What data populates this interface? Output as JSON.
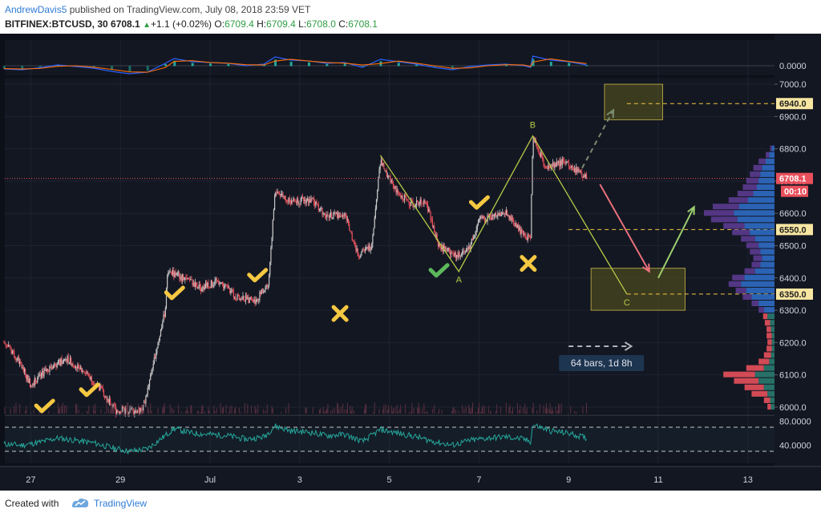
{
  "header": {
    "author": "AndrewDavis5",
    "published": "published on TradingView.com, July 08, 2018 23:59 VET",
    "symbol": "BITFINEX:BTCUSD, 30",
    "last": "6708.1",
    "change": "+1.1 (+0.02%)",
    "o_label": "O:",
    "o": "6709.4",
    "h_label": "H:",
    "h": "6709.4",
    "l_label": "L:",
    "l": "6708.0",
    "c_label": "C:",
    "c": "6708.1"
  },
  "footer": {
    "created": "Created with",
    "brand": "TradingView"
  },
  "colors": {
    "background": "#131722",
    "grid": "#1e2330",
    "up": "#c8c8c8",
    "down": "#e8505b",
    "accent_yellow": "#f5c842",
    "wave": "#b7c947",
    "box_fill": "#5c5a1e",
    "rsi": "#26a69a",
    "price_line": "#e8505b",
    "volume_profile_up": "#2f6bc4",
    "volume_profile_down": "#e8505b",
    "volume_profile_violet": "#5b3a8f"
  },
  "chart_data": {
    "type": "candlestick",
    "symbol": "BITFINEX:BTCUSD",
    "timeframe": "30",
    "x_labels": [
      "27",
      "29",
      "Jul",
      "3",
      "5",
      "7",
      "9",
      "11",
      "13"
    ],
    "x_label_days": [
      -4,
      -2,
      0,
      2,
      4,
      6,
      8,
      10,
      12
    ],
    "y_ticks": [
      6000,
      6100,
      6200,
      6300,
      6400,
      6500,
      6600,
      6700,
      6800,
      6900,
      7000
    ],
    "y_tick_labels": [
      "6000.0",
      "6100.0",
      "6200.0",
      "6300.0",
      "6400.0",
      "6500.0",
      "6600.0",
      "6700.0",
      "6800.0",
      "6900.0",
      "7000.0"
    ],
    "ylim": [
      5980,
      7020
    ],
    "current_price": {
      "value": 6708.1,
      "label": "6708.1",
      "countdown": "00:10"
    },
    "levels": [
      {
        "value": 6940,
        "label": "6940.0"
      },
      {
        "value": 6550,
        "label": "6550.0"
      },
      {
        "value": 6350,
        "label": "6350.0"
      }
    ],
    "price_path": [
      [
        -4.6,
        6200
      ],
      [
        -4.3,
        6150
      ],
      [
        -4.0,
        6070
      ],
      [
        -3.6,
        6120
      ],
      [
        -3.2,
        6150
      ],
      [
        -2.8,
        6110
      ],
      [
        -2.4,
        6050
      ],
      [
        -2.1,
        5990
      ],
      [
        -1.5,
        5990
      ],
      [
        -1.0,
        6300
      ],
      [
        -0.95,
        6420
      ],
      [
        -0.6,
        6400
      ],
      [
        -0.2,
        6370
      ],
      [
        0.2,
        6390
      ],
      [
        0.6,
        6340
      ],
      [
        1.0,
        6330
      ],
      [
        1.3,
        6380
      ],
      [
        1.45,
        6670
      ],
      [
        1.8,
        6640
      ],
      [
        2.3,
        6640
      ],
      [
        2.6,
        6590
      ],
      [
        3.0,
        6600
      ],
      [
        3.3,
        6470
      ],
      [
        3.6,
        6500
      ],
      [
        3.8,
        6760
      ],
      [
        4.2,
        6660
      ],
      [
        4.5,
        6630
      ],
      [
        4.8,
        6640
      ],
      [
        5.1,
        6500
      ],
      [
        5.5,
        6470
      ],
      [
        5.8,
        6500
      ],
      [
        6.0,
        6580
      ],
      [
        6.3,
        6590
      ],
      [
        6.6,
        6600
      ],
      [
        6.8,
        6570
      ],
      [
        7.0,
        6530
      ],
      [
        7.15,
        6520
      ],
      [
        7.2,
        6840
      ],
      [
        7.5,
        6740
      ],
      [
        7.9,
        6760
      ],
      [
        8.2,
        6730
      ],
      [
        8.4,
        6708
      ]
    ],
    "wave": {
      "points": [
        {
          "label": "",
          "day": 3.8,
          "value": 6780
        },
        {
          "label": "A",
          "day": 5.55,
          "value": 6420
        },
        {
          "label": "B",
          "day": 7.2,
          "value": 6840
        },
        {
          "label": "C",
          "day": 9.3,
          "value": 6350
        }
      ]
    },
    "zones": [
      {
        "day_start": 8.8,
        "day_end": 10.1,
        "low": 6890,
        "high": 7000
      },
      {
        "day_start": 8.5,
        "day_end": 10.6,
        "low": 6300,
        "high": 6430
      }
    ],
    "arrows": [
      {
        "type": "dashed",
        "from": [
          8.3,
          6740
        ],
        "to": [
          9.0,
          6920
        ]
      },
      {
        "type": "solid-red",
        "from": [
          8.7,
          6690
        ],
        "to": [
          9.8,
          6420
        ]
      },
      {
        "type": "solid-green",
        "from": [
          10.0,
          6400
        ],
        "to": [
          10.8,
          6620
        ]
      }
    ],
    "markers": [
      {
        "kind": "check",
        "color": "yellow",
        "day": -3.7,
        "value": 6000
      },
      {
        "kind": "check",
        "color": "yellow",
        "day": -2.7,
        "value": 6050
      },
      {
        "kind": "check",
        "color": "yellow",
        "day": -0.8,
        "value": 6350
      },
      {
        "kind": "check",
        "color": "yellow",
        "day": 1.05,
        "value": 6405
      },
      {
        "kind": "cross",
        "color": "yellow",
        "day": 2.9,
        "value": 6290
      },
      {
        "kind": "check",
        "color": "green",
        "day": 5.1,
        "value": 6420
      },
      {
        "kind": "check",
        "color": "yellow",
        "day": 6.0,
        "value": 6630
      },
      {
        "kind": "cross",
        "color": "yellow",
        "day": 7.1,
        "value": 6445
      }
    ],
    "measure": {
      "label": "64 bars, 1d 8h",
      "from_day": 8.0,
      "to_day": 9.4
    },
    "volume_profile": [
      {
        "price": 6000,
        "buy": 0.04,
        "sell": 0.04
      },
      {
        "price": 6020,
        "buy": 0.05,
        "sell": 0.07
      },
      {
        "price": 6040,
        "buy": 0.08,
        "sell": 0.18
      },
      {
        "price": 6060,
        "buy": 0.12,
        "sell": 0.22
      },
      {
        "price": 6080,
        "buy": 0.18,
        "sell": 0.28
      },
      {
        "price": 6100,
        "buy": 0.22,
        "sell": 0.36
      },
      {
        "price": 6120,
        "buy": 0.12,
        "sell": 0.2
      },
      {
        "price": 6140,
        "buy": 0.06,
        "sell": 0.12
      },
      {
        "price": 6160,
        "buy": 0.04,
        "sell": 0.08
      },
      {
        "price": 6180,
        "buy": 0.03,
        "sell": 0.06
      },
      {
        "price": 6200,
        "buy": 0.03,
        "sell": 0.05
      },
      {
        "price": 6220,
        "buy": 0.03,
        "sell": 0.06
      },
      {
        "price": 6240,
        "buy": 0.04,
        "sell": 0.05
      },
      {
        "price": 6260,
        "buy": 0.05,
        "sell": 0.06
      },
      {
        "price": 6280,
        "buy": 0.08,
        "sell": 0.05
      },
      {
        "price": 6300,
        "buy": 0.12,
        "sell": 0.06
      },
      {
        "price": 6320,
        "buy": 0.18,
        "sell": 0.08
      },
      {
        "price": 6340,
        "buy": 0.26,
        "sell": 0.1
      },
      {
        "price": 6360,
        "buy": 0.32,
        "sell": 0.12
      },
      {
        "price": 6380,
        "buy": 0.38,
        "sell": 0.14
      },
      {
        "price": 6400,
        "buy": 0.34,
        "sell": 0.14
      },
      {
        "price": 6420,
        "buy": 0.22,
        "sell": 0.12
      },
      {
        "price": 6440,
        "buy": 0.16,
        "sell": 0.1
      },
      {
        "price": 6460,
        "buy": 0.14,
        "sell": 0.1
      },
      {
        "price": 6480,
        "buy": 0.16,
        "sell": 0.12
      },
      {
        "price": 6500,
        "buy": 0.18,
        "sell": 0.14
      },
      {
        "price": 6520,
        "buy": 0.22,
        "sell": 0.16
      },
      {
        "price": 6540,
        "buy": 0.28,
        "sell": 0.2
      },
      {
        "price": 6560,
        "buy": 0.34,
        "sell": 0.24
      },
      {
        "price": 6580,
        "buy": 0.42,
        "sell": 0.3
      },
      {
        "price": 6600,
        "buy": 0.46,
        "sell": 0.34
      },
      {
        "price": 6620,
        "buy": 0.4,
        "sell": 0.3
      },
      {
        "price": 6640,
        "buy": 0.3,
        "sell": 0.22
      },
      {
        "price": 6660,
        "buy": 0.24,
        "sell": 0.18
      },
      {
        "price": 6680,
        "buy": 0.2,
        "sell": 0.16
      },
      {
        "price": 6700,
        "buy": 0.18,
        "sell": 0.14
      },
      {
        "price": 6720,
        "buy": 0.16,
        "sell": 0.12
      },
      {
        "price": 6740,
        "buy": 0.14,
        "sell": 0.1
      },
      {
        "price": 6760,
        "buy": 0.1,
        "sell": 0.08
      },
      {
        "price": 6780,
        "buy": 0.06,
        "sell": 0.04
      },
      {
        "price": 6800,
        "buy": 0.03,
        "sell": 0.02
      }
    ],
    "macd": {
      "zero_label": "0.0000",
      "zero": 0
    },
    "rsi": {
      "tick_values": [
        80,
        40
      ],
      "tick_labels": [
        "80.0000",
        "40.0000"
      ],
      "bands": [
        70,
        30
      ],
      "values": [
        [
          -4.6,
          42
        ],
        [
          -4.2,
          40
        ],
        [
          -3.8,
          45
        ],
        [
          -3.4,
          52
        ],
        [
          -3.0,
          48
        ],
        [
          -2.6,
          44
        ],
        [
          -2.2,
          36
        ],
        [
          -1.8,
          30
        ],
        [
          -1.4,
          34
        ],
        [
          -1.0,
          56
        ],
        [
          -0.8,
          68
        ],
        [
          -0.4,
          60
        ],
        [
          0.0,
          58
        ],
        [
          0.4,
          56
        ],
        [
          0.8,
          50
        ],
        [
          1.2,
          54
        ],
        [
          1.45,
          72
        ],
        [
          1.8,
          64
        ],
        [
          2.2,
          62
        ],
        [
          2.6,
          56
        ],
        [
          3.0,
          58
        ],
        [
          3.4,
          46
        ],
        [
          3.8,
          66
        ],
        [
          4.2,
          60
        ],
        [
          4.6,
          54
        ],
        [
          5.0,
          46
        ],
        [
          5.4,
          40
        ],
        [
          5.8,
          48
        ],
        [
          6.2,
          52
        ],
        [
          6.6,
          54
        ],
        [
          7.0,
          50
        ],
        [
          7.15,
          46
        ],
        [
          7.2,
          74
        ],
        [
          7.6,
          64
        ],
        [
          8.0,
          60
        ],
        [
          8.4,
          52
        ]
      ]
    }
  }
}
